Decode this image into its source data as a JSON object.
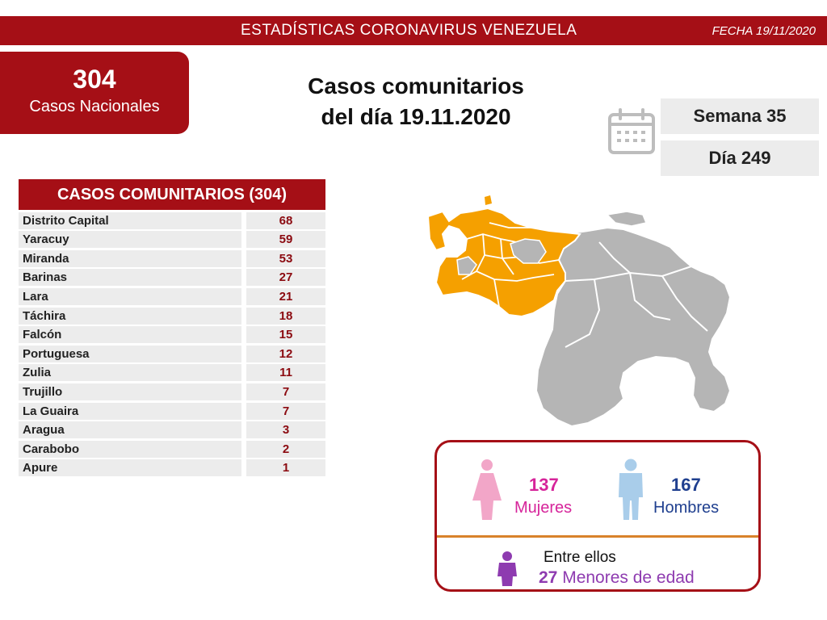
{
  "header": {
    "title": "ESTADÍSTICAS CORONAVIRUS VENEZUELA",
    "date": "FECHA 19/11/2020"
  },
  "national": {
    "count": "304",
    "label": "Casos Nacionales"
  },
  "headline": {
    "line1": "Casos comunitarios",
    "line2": "del día 19.11.2020"
  },
  "week": "Semana 35",
  "day": "Día 249",
  "table": {
    "title": "CASOS COMUNITARIOS (304)",
    "rows": [
      {
        "state": "Distrito Capital",
        "cases": "68"
      },
      {
        "state": "Yaracuy",
        "cases": "59"
      },
      {
        "state": "Miranda",
        "cases": "53"
      },
      {
        "state": "Barinas",
        "cases": "27"
      },
      {
        "state": "Lara",
        "cases": "21"
      },
      {
        "state": "Táchira",
        "cases": "18"
      },
      {
        "state": "Falcón",
        "cases": "15"
      },
      {
        "state": "Portuguesa",
        "cases": "12"
      },
      {
        "state": "Zulia",
        "cases": "11"
      },
      {
        "state": "Trujillo",
        "cases": "7"
      },
      {
        "state": "La Guaira",
        "cases": "7"
      },
      {
        "state": "Aragua",
        "cases": "3"
      },
      {
        "state": "Carabobo",
        "cases": "2"
      },
      {
        "state": "Apure",
        "cases": "1"
      }
    ]
  },
  "gender": {
    "women": {
      "count": "137",
      "label": "Mujeres"
    },
    "men": {
      "count": "167",
      "label": "Hombres"
    }
  },
  "minors": {
    "intro": "Entre ellos",
    "count": "27",
    "label": "Menores de edad"
  },
  "colors": {
    "brand": "#a50f16",
    "women": "#d6249a",
    "men": "#1f3f8f",
    "minors": "#8e3bb0",
    "map_affected": "#f5a000",
    "map_other": "#b5b5b5"
  },
  "icons": [
    "calendar-icon",
    "woman-icon",
    "man-icon",
    "child-icon",
    "venezuela-map"
  ]
}
